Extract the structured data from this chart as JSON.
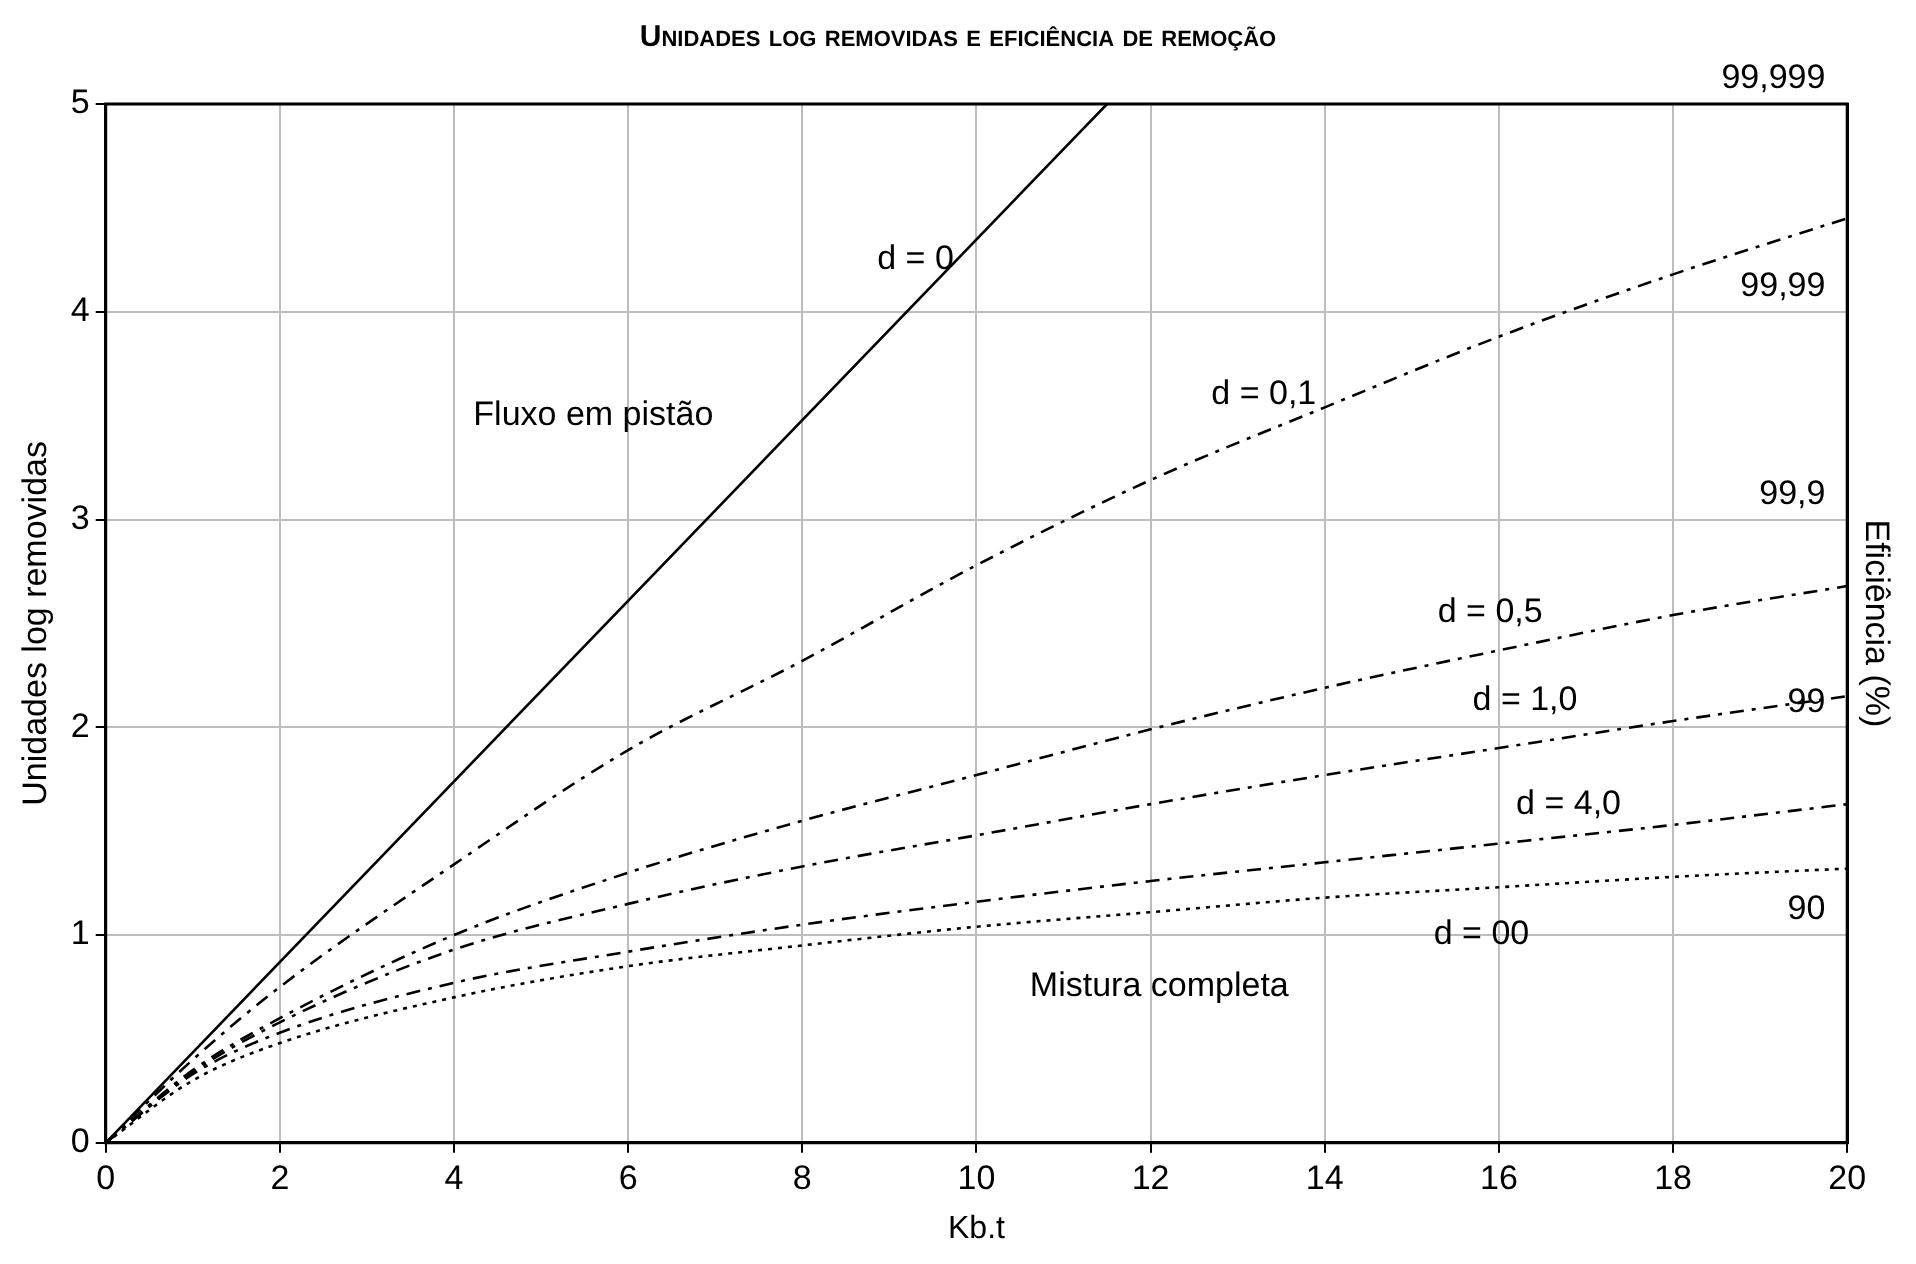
{
  "chart_data": {
    "type": "line",
    "title": "Unidades log removidas e eficiência de remoção",
    "xlabel": "Kb.t",
    "ylabel": "Unidades log removidas",
    "y2label": "Eficiência (%)",
    "xlim": [
      0,
      20
    ],
    "xticks": [
      0,
      2,
      4,
      6,
      8,
      10,
      12,
      14,
      16,
      18,
      20
    ],
    "ylim": [
      0,
      5
    ],
    "yticks": [
      0,
      1,
      2,
      3,
      4,
      5
    ],
    "grid": true,
    "legend": false,
    "marker": "none",
    "series": [
      {
        "name": "d = 0",
        "color": "#000000",
        "line_style": "solid",
        "x": [
          0,
          11.5
        ],
        "values": [
          0,
          5
        ]
      },
      {
        "name": "d = 0,1",
        "color": "#000000",
        "line_style": "dashed",
        "x": [
          0,
          1,
          2,
          4,
          6,
          8,
          10,
          12,
          14,
          16,
          18,
          20
        ],
        "values": [
          0,
          0.4,
          0.75,
          1.34,
          1.89,
          2.32,
          2.78,
          3.19,
          3.54,
          3.88,
          4.18,
          4.45
        ]
      },
      {
        "name": "d = 0,5",
        "color": "#000000",
        "line_style": "dashed",
        "x": [
          0,
          1,
          2,
          4,
          6,
          8,
          10,
          12,
          14,
          16,
          18,
          20
        ],
        "values": [
          0,
          0.35,
          0.6,
          1.0,
          1.3,
          1.55,
          1.77,
          1.99,
          2.19,
          2.37,
          2.54,
          2.68
        ]
      },
      {
        "name": "d = 1,0",
        "color": "#000000",
        "line_style": "dashed",
        "x": [
          0,
          1,
          2,
          4,
          6,
          8,
          10,
          12,
          14,
          16,
          18,
          20
        ],
        "values": [
          0,
          0.34,
          0.58,
          0.93,
          1.15,
          1.33,
          1.48,
          1.63,
          1.77,
          1.9,
          2.03,
          2.15
        ]
      },
      {
        "name": "d = 4,0",
        "color": "#000000",
        "line_style": "dashed",
        "x": [
          0,
          1,
          2,
          4,
          6,
          8,
          10,
          12,
          14,
          16,
          18,
          20
        ],
        "values": [
          0,
          0.33,
          0.53,
          0.77,
          0.92,
          1.05,
          1.16,
          1.26,
          1.35,
          1.44,
          1.53,
          1.63
        ]
      },
      {
        "name": "d = 00",
        "color": "#000000",
        "line_style": "dotted",
        "x": [
          0,
          1,
          2,
          4,
          6,
          8,
          10,
          12,
          14,
          16,
          18,
          20
        ],
        "values": [
          0,
          0.3,
          0.48,
          0.7,
          0.85,
          0.95,
          1.04,
          1.11,
          1.18,
          1.23,
          1.28,
          1.32
        ]
      }
    ],
    "annotations": [
      "Fluxo em pistão",
      "Mistura completa",
      "90",
      "99",
      "99,9",
      "99,99",
      "99,999"
    ]
  }
}
